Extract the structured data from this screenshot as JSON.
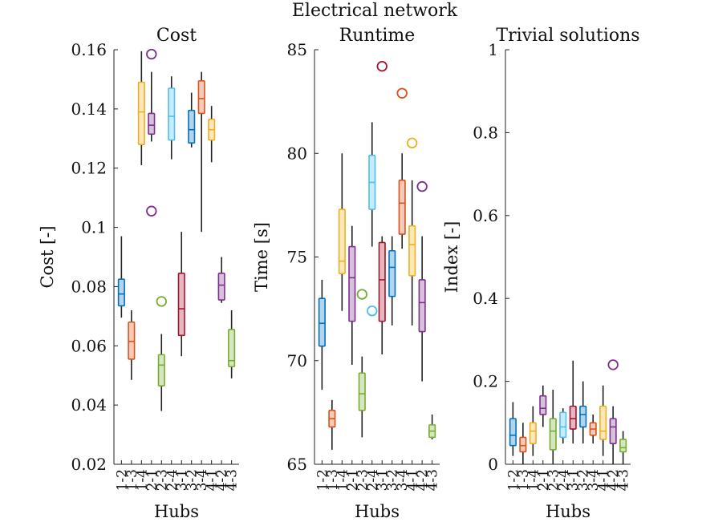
{
  "figure_title": "Electrical network",
  "chart_data": [
    {
      "type": "boxplot",
      "title": "Cost",
      "xlabel": "Hubs",
      "ylabel": "Cost [-]",
      "ylim": [
        0.02,
        0.16
      ],
      "yticks": [
        0.02,
        0.04,
        0.06,
        0.08,
        0.1,
        0.12,
        0.14,
        0.16
      ],
      "ytick_labels": [
        "0.02",
        "0.04",
        "0.06",
        "0.08",
        "0.1",
        "0.12",
        "0.14",
        "0.16"
      ],
      "categories": [
        "1-2",
        "1-3",
        "1-4",
        "2-1",
        "2-3",
        "2-4",
        "3-1",
        "3-2",
        "3-4",
        "4-1",
        "4-2",
        "4-3"
      ],
      "boxes": [
        {
          "min": 0.0695,
          "q1": 0.0735,
          "median": 0.0775,
          "q3": 0.0825,
          "max": 0.097,
          "outliers": []
        },
        {
          "min": 0.0485,
          "q1": 0.0555,
          "median": 0.0615,
          "q3": 0.068,
          "max": 0.072,
          "outliers": []
        },
        {
          "min": 0.121,
          "q1": 0.128,
          "median": 0.139,
          "q3": 0.149,
          "max": 0.1595,
          "outliers": []
        },
        {
          "min": 0.129,
          "q1": 0.1315,
          "median": 0.1345,
          "q3": 0.1385,
          "max": 0.1525,
          "outliers": [
            0.1585,
            0.1055
          ]
        },
        {
          "min": 0.038,
          "q1": 0.0465,
          "median": 0.0535,
          "q3": 0.057,
          "max": 0.064,
          "outliers": [
            0.075
          ]
        },
        {
          "min": 0.123,
          "q1": 0.1295,
          "median": 0.1375,
          "q3": 0.147,
          "max": 0.151,
          "outliers": []
        },
        {
          "min": 0.0565,
          "q1": 0.0635,
          "median": 0.0725,
          "q3": 0.0845,
          "max": 0.0985,
          "outliers": []
        },
        {
          "min": 0.127,
          "q1": 0.1285,
          "median": 0.133,
          "q3": 0.1395,
          "max": 0.1455,
          "outliers": []
        },
        {
          "min": 0.0985,
          "q1": 0.1385,
          "median": 0.1435,
          "q3": 0.1495,
          "max": 0.1525,
          "outliers": []
        },
        {
          "min": 0.122,
          "q1": 0.1295,
          "median": 0.133,
          "q3": 0.1365,
          "max": 0.141,
          "outliers": []
        },
        {
          "min": 0.0745,
          "q1": 0.0755,
          "median": 0.0805,
          "q3": 0.0845,
          "max": 0.09,
          "outliers": []
        },
        {
          "min": 0.049,
          "q1": 0.053,
          "median": 0.055,
          "q3": 0.0655,
          "max": 0.072,
          "outliers": []
        }
      ]
    },
    {
      "type": "boxplot",
      "title": "Runtime",
      "xlabel": "Hubs",
      "ylabel": "Time [s]",
      "ylim": [
        65,
        85
      ],
      "yticks": [
        65,
        70,
        75,
        80,
        85
      ],
      "ytick_labels": [
        "65",
        "70",
        "75",
        "80",
        "85"
      ],
      "categories": [
        "1-2",
        "1-3",
        "1-4",
        "2-1",
        "2-3",
        "2-4",
        "3-1",
        "3-2",
        "3-4",
        "4-1",
        "4-2",
        "4-3"
      ],
      "boxes": [
        {
          "min": 68.6,
          "q1": 70.7,
          "median": 71.8,
          "q3": 73.0,
          "max": 73.9,
          "outliers": []
        },
        {
          "min": 65.7,
          "q1": 66.8,
          "median": 67.2,
          "q3": 67.6,
          "max": 68.1,
          "outliers": []
        },
        {
          "min": 72.4,
          "q1": 74.2,
          "median": 74.8,
          "q3": 77.3,
          "max": 80.0,
          "outliers": []
        },
        {
          "min": 69.8,
          "q1": 71.9,
          "median": 74.0,
          "q3": 75.5,
          "max": 76.5,
          "outliers": []
        },
        {
          "min": 66.3,
          "q1": 67.6,
          "median": 68.4,
          "q3": 69.4,
          "max": 70.2,
          "outliers": [
            73.2
          ]
        },
        {
          "min": 75.5,
          "q1": 77.3,
          "median": 78.6,
          "q3": 79.9,
          "max": 81.5,
          "outliers": [
            72.4
          ]
        },
        {
          "min": 70.3,
          "q1": 71.9,
          "median": 73.9,
          "q3": 75.7,
          "max": 76.0,
          "outliers": [
            84.2
          ]
        },
        {
          "min": 71.7,
          "q1": 73.1,
          "median": 74.5,
          "q3": 75.3,
          "max": 76.0,
          "outliers": []
        },
        {
          "min": 75.4,
          "q1": 76.1,
          "median": 77.6,
          "q3": 78.7,
          "max": 80.0,
          "outliers": [
            82.9
          ]
        },
        {
          "min": 71.7,
          "q1": 74.1,
          "median": 75.6,
          "q3": 76.5,
          "max": 78.7,
          "outliers": [
            80.5
          ]
        },
        {
          "min": 69.0,
          "q1": 71.4,
          "median": 72.8,
          "q3": 73.9,
          "max": 76.0,
          "outliers": [
            78.4
          ]
        },
        {
          "min": 66.2,
          "q1": 66.3,
          "median": 66.6,
          "q3": 66.9,
          "max": 67.4,
          "outliers": []
        }
      ]
    },
    {
      "type": "boxplot",
      "title": "Trivial solutions",
      "xlabel": "Hubs",
      "ylabel": "Index [-]",
      "ylim": [
        0,
        1
      ],
      "yticks": [
        0,
        0.2,
        0.4,
        0.6,
        0.8,
        1
      ],
      "ytick_labels": [
        "0",
        "0.2",
        "0.4",
        "0.6",
        "0.8",
        "1"
      ],
      "categories": [
        "1-2",
        "1-3",
        "1-4",
        "2-1",
        "2-3",
        "2-4",
        "3-1",
        "3-2",
        "3-4",
        "4-1",
        "4-2",
        "4-3"
      ],
      "boxes": [
        {
          "min": 0.02,
          "q1": 0.045,
          "median": 0.07,
          "q3": 0.11,
          "max": 0.15,
          "outliers": []
        },
        {
          "min": 0.0,
          "q1": 0.03,
          "median": 0.045,
          "q3": 0.065,
          "max": 0.1,
          "outliers": []
        },
        {
          "min": 0.02,
          "q1": 0.05,
          "median": 0.08,
          "q3": 0.1,
          "max": 0.14,
          "outliers": []
        },
        {
          "min": 0.09,
          "q1": 0.12,
          "median": 0.135,
          "q3": 0.165,
          "max": 0.19,
          "outliers": []
        },
        {
          "min": 0.0,
          "q1": 0.035,
          "median": 0.08,
          "q3": 0.11,
          "max": 0.18,
          "outliers": []
        },
        {
          "min": 0.05,
          "q1": 0.065,
          "median": 0.09,
          "q3": 0.125,
          "max": 0.135,
          "outliers": []
        },
        {
          "min": 0.05,
          "q1": 0.085,
          "median": 0.11,
          "q3": 0.14,
          "max": 0.25,
          "outliers": []
        },
        {
          "min": 0.05,
          "q1": 0.09,
          "median": 0.12,
          "q3": 0.14,
          "max": 0.2,
          "outliers": []
        },
        {
          "min": 0.05,
          "q1": 0.07,
          "median": 0.085,
          "q3": 0.1,
          "max": 0.12,
          "outliers": []
        },
        {
          "min": 0.02,
          "q1": 0.06,
          "median": 0.08,
          "q3": 0.14,
          "max": 0.19,
          "outliers": []
        },
        {
          "min": 0.0,
          "q1": 0.05,
          "median": 0.09,
          "q3": 0.11,
          "max": 0.14,
          "outliers": [
            0.24
          ]
        },
        {
          "min": 0.0,
          "q1": 0.03,
          "median": 0.04,
          "q3": 0.06,
          "max": 0.08,
          "outliers": []
        }
      ]
    }
  ],
  "colors": [
    "#0072BD",
    "#D95319",
    "#EDB120",
    "#7E2F8E",
    "#77AC30",
    "#4DBEEE",
    "#A2142F",
    "#0072BD",
    "#D95319",
    "#EDB120",
    "#7E2F8E",
    "#77AC30"
  ],
  "fill_colors": [
    "#B3D4EB",
    "#F4CBBA",
    "#FAE8BC",
    "#D8C1DC",
    "#D6E6C1",
    "#C9ECFA",
    "#E3B9C1",
    "#B3D4EB",
    "#F4CBBA",
    "#FAE8BC",
    "#D8C1DC",
    "#D6E6C1"
  ],
  "whisker_color": "#222222"
}
